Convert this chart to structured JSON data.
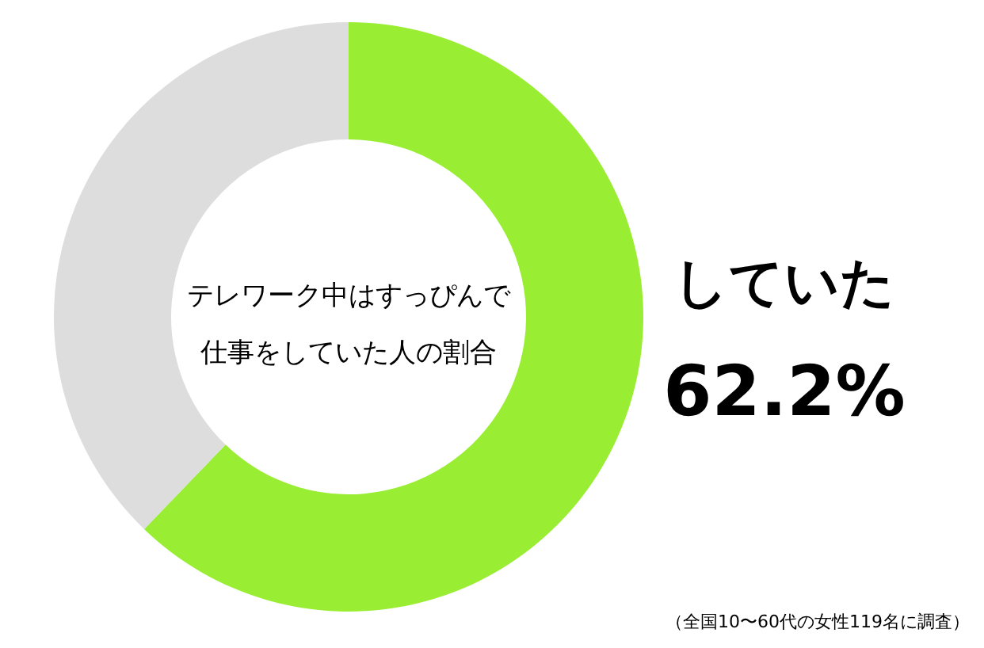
{
  "chart_data": {
    "type": "donut",
    "title": "テレワーク中はすっぴんで仕事をしていた人の割合",
    "categories": [
      "していた",
      null
    ],
    "values": [
      62.2,
      37.8
    ],
    "colors": [
      "#99ee33",
      "#dddddd"
    ],
    "value_labels": [
      "62.2%",
      null
    ],
    "annotations": [
      "（全国10〜60代の女性119名に調査）"
    ]
  }
}
